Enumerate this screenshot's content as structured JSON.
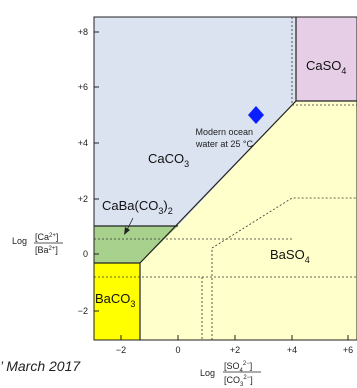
{
  "colors": {
    "caco3": "#dbe3f1",
    "caso4": "#e6cfe6",
    "baso4": "#ffffcc",
    "cabaco3": "#a9d18e",
    "baco3": "#ffff00",
    "marker": "#0a1fff"
  },
  "diagram": {
    "y_ticks": [
      "+8",
      "+6",
      "+4",
      "+2",
      "0",
      "−2"
    ],
    "x_ticks": [
      "−2",
      "0",
      "+2",
      "+4",
      "+6"
    ],
    "y_label": {
      "prefix": "Log",
      "num": "[Ca",
      "num_sup": "2+",
      "den": "[Ba",
      "den_sup": "2+"
    },
    "x_label": {
      "prefix": "Log",
      "num": "[SO",
      "num_sub": "4",
      "num_sup": "2−",
      "den": "[CO",
      "den_sub": "3",
      "den_sup": "2−"
    },
    "regions": {
      "caco3": {
        "main": "CaCO",
        "sub": "3"
      },
      "caso4": {
        "main": "CaSO",
        "sub": "4"
      },
      "baso4": {
        "main": "BaSO",
        "sub": "4"
      },
      "cabaco3": {
        "main": "CaBa(CO",
        "sub": "3",
        "tail": ")",
        "sub2": "2"
      },
      "baco3": {
        "main": "BaCO",
        "sub": "3"
      }
    },
    "annotation": {
      "line1": "Modern ocean",
      "line2": "water at 25 °C"
    },
    "date_text": "’ March 2017"
  }
}
